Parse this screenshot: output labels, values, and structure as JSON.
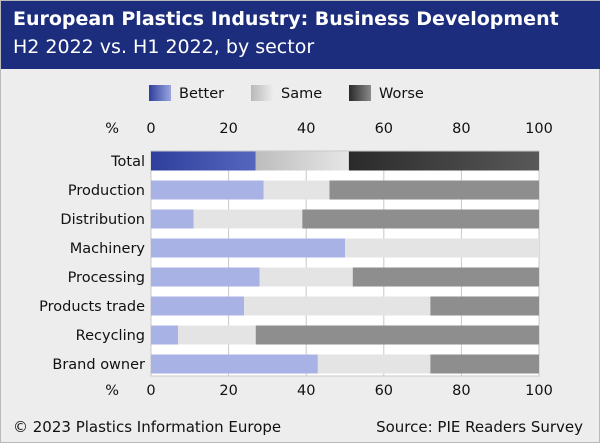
{
  "header": {
    "title": "European Plastics Industry: Business Development",
    "subtitle": "H2 2022 vs. H1 2022, by sector"
  },
  "footer": {
    "copyright": "© 2023 Plastics Information Europe",
    "source": "Source: PIE Readers Survey"
  },
  "colors": {
    "header_bg": "#1d2d7d",
    "background": "#ededed",
    "better_total": "#3b4fae",
    "same_total": "#c9c9c9",
    "worse_total": "#3d3d3d",
    "better": "#a8b2e4",
    "same": "#e4e4e4",
    "worse": "#8e8e8e"
  },
  "chart_data": {
    "type": "bar",
    "orientation": "horizontal",
    "stacked": true,
    "categories": [
      "Total",
      "Production",
      "Distribution",
      "Machinery",
      "Processing",
      "Products trade",
      "Recycling",
      "Brand owner"
    ],
    "series": [
      {
        "name": "Better",
        "values": [
          27,
          29,
          11,
          50,
          28,
          24,
          7,
          43
        ]
      },
      {
        "name": "Same",
        "values": [
          24,
          17,
          28,
          50,
          24,
          48,
          20,
          29
        ]
      },
      {
        "name": "Worse",
        "values": [
          49,
          54,
          61,
          0,
          48,
          28,
          73,
          28
        ]
      }
    ],
    "xlabel": "%",
    "xticks": [
      0,
      20,
      40,
      60,
      80,
      100
    ],
    "xlim": [
      0,
      100
    ],
    "legend": "top",
    "grid": true
  }
}
